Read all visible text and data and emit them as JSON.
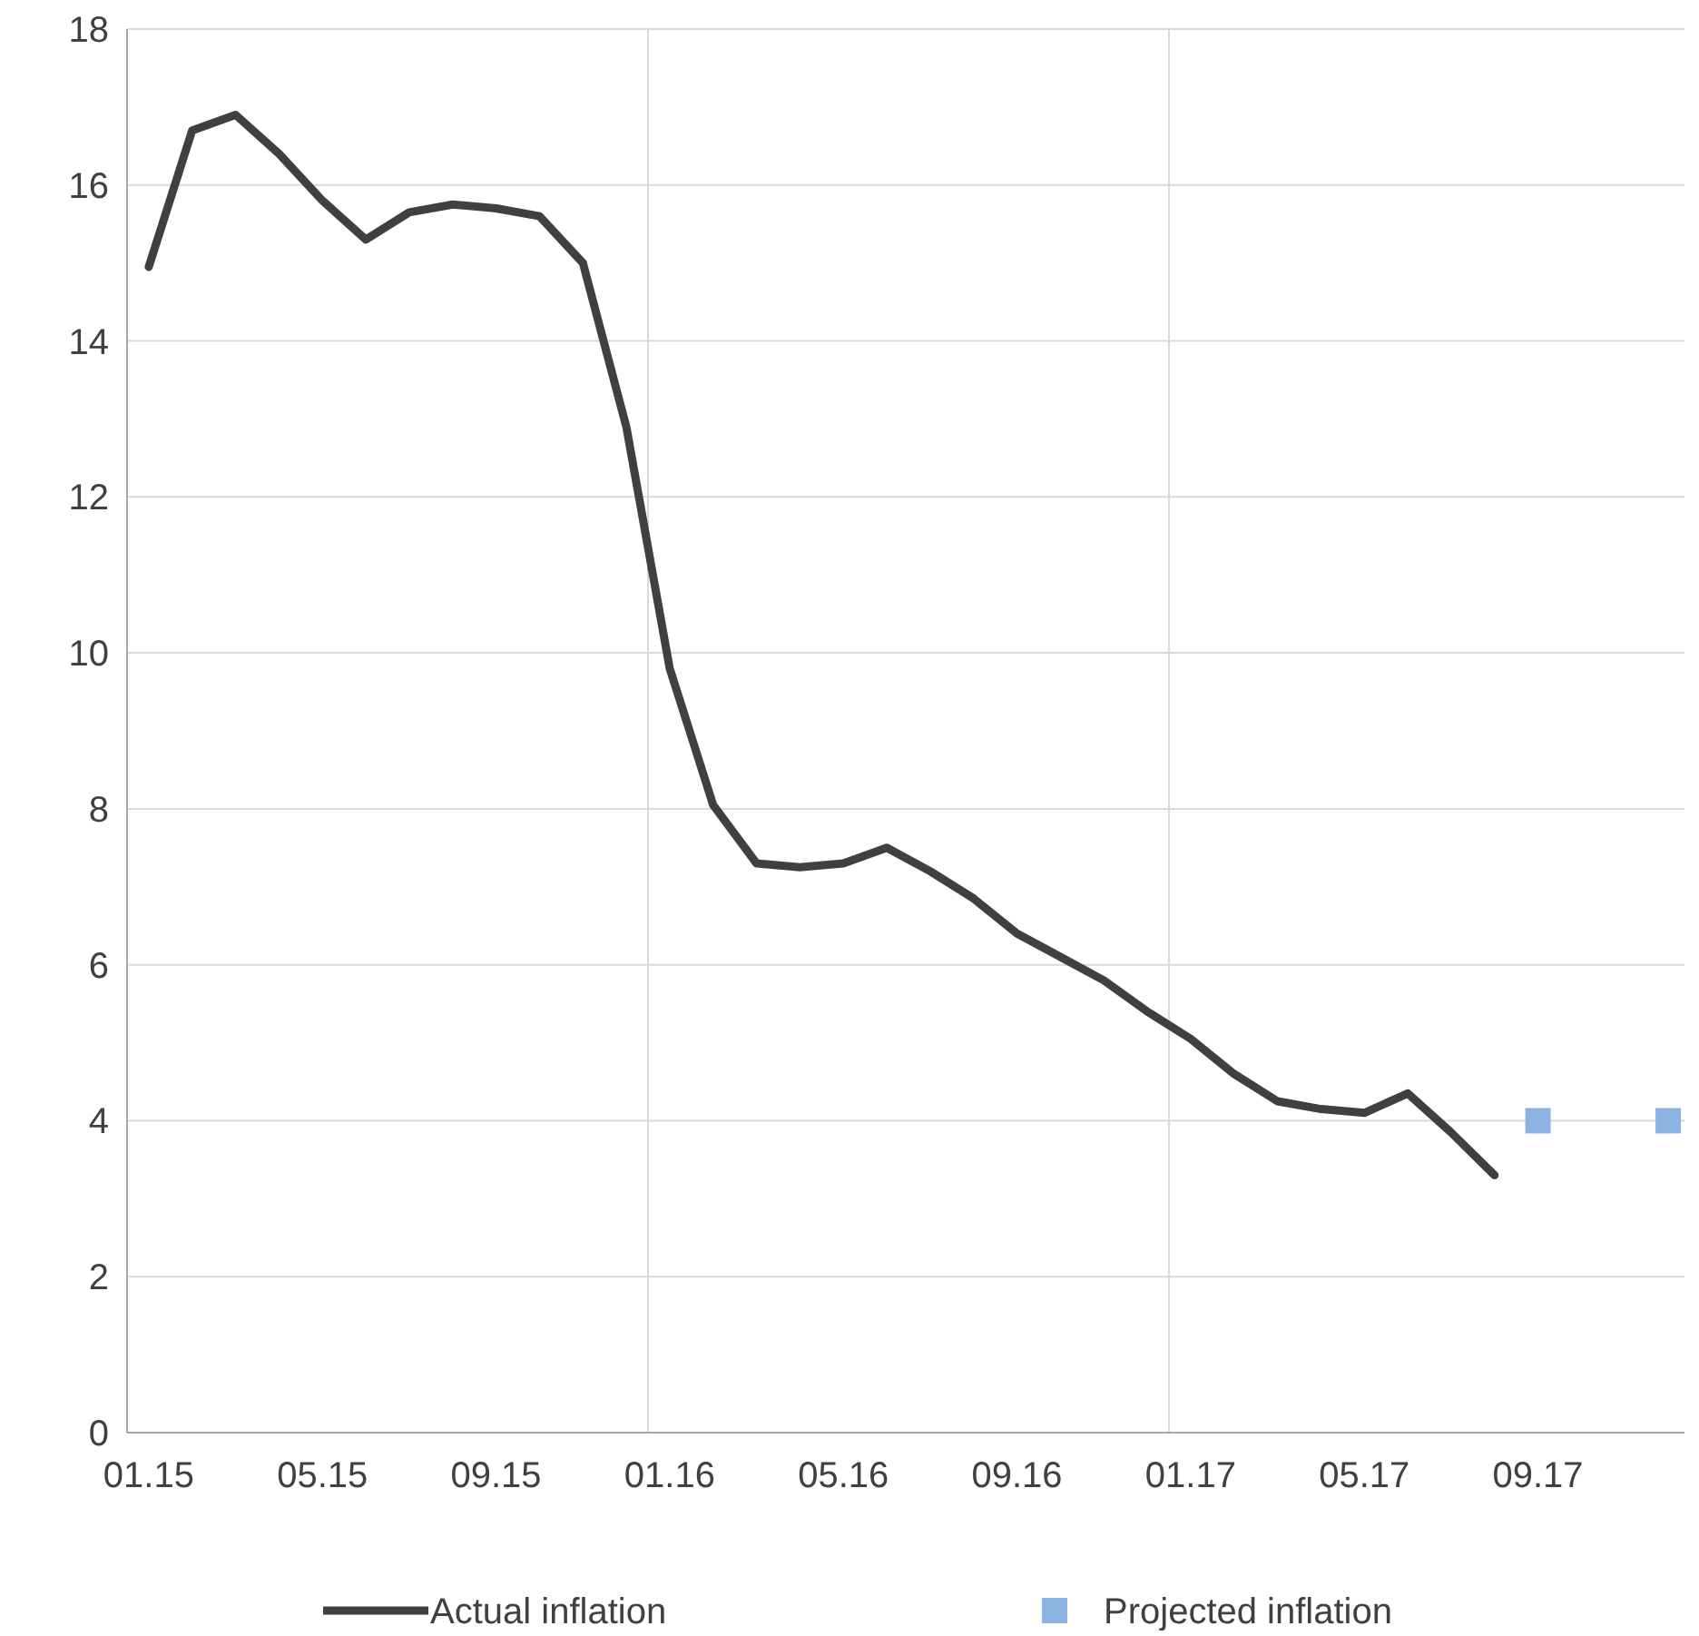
{
  "chart_data": {
    "type": "line",
    "categories": [
      "01.15",
      null,
      null,
      null,
      "05.15",
      null,
      null,
      null,
      "09.15",
      null,
      null,
      null,
      "01.16",
      null,
      null,
      null,
      "05.16",
      null,
      null,
      null,
      "09.16",
      null,
      null,
      null,
      "01.17",
      null,
      null,
      null,
      "05.17",
      null,
      null,
      null,
      "09.17",
      null,
      null,
      null
    ],
    "series": [
      {
        "name": "Actual inflation",
        "color": "#404040",
        "marker": "none",
        "values": [
          14.95,
          16.7,
          16.9,
          16.4,
          15.8,
          15.3,
          15.65,
          15.75,
          15.7,
          15.6,
          15.0,
          12.9,
          9.8,
          8.05,
          7.3,
          7.25,
          7.3,
          7.5,
          7.2,
          6.85,
          6.4,
          6.1,
          5.8,
          5.4,
          5.05,
          4.6,
          4.25,
          4.15,
          4.1,
          4.35,
          3.85,
          3.3,
          null,
          null,
          null,
          null
        ]
      },
      {
        "name": "Projected inflation",
        "type": "scatter",
        "color": "#8db3e2",
        "marker": "square",
        "values": [
          null,
          null,
          null,
          null,
          null,
          null,
          null,
          null,
          null,
          null,
          null,
          null,
          null,
          null,
          null,
          null,
          null,
          null,
          null,
          null,
          null,
          null,
          null,
          null,
          null,
          null,
          null,
          null,
          null,
          null,
          null,
          null,
          4,
          null,
          null,
          4
        ]
      }
    ],
    "ylim": [
      0,
      18
    ],
    "yticks": [
      0,
      2,
      4,
      6,
      8,
      10,
      12,
      14,
      16,
      18
    ],
    "grid": true,
    "legend": "bottom"
  }
}
